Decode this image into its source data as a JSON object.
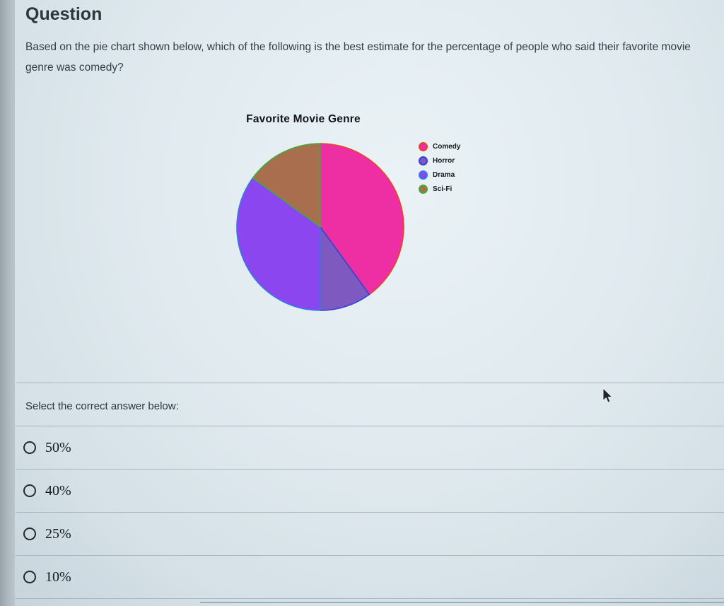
{
  "page": {
    "title": "Question",
    "question": "Based on the pie chart shown below, which of the following is the best estimate for the percentage of people who said their favorite movie genre was comedy?",
    "select_prompt": "Select the correct answer below:"
  },
  "chart_data": {
    "type": "pie",
    "title": "Favorite Movie Genre",
    "legend_position": "right",
    "start_angle": "top",
    "direction": "clockwise",
    "categories": [
      "Comedy",
      "Horror",
      "Drama",
      "Sci-Fi"
    ],
    "values": [
      40,
      10,
      35,
      15
    ],
    "unit": "percent",
    "segments": [
      {
        "label": "Comedy",
        "value": 40,
        "fill": "#ee2fa4",
        "stroke": "#dd4a1e"
      },
      {
        "label": "Horror",
        "value": 10,
        "fill": "#7d59c0",
        "stroke": "#3340d6"
      },
      {
        "label": "Drama",
        "value": 35,
        "fill": "#8b46f0",
        "stroke": "#2f7de8"
      },
      {
        "label": "Sci-Fi",
        "value": 15,
        "fill": "#a86e4e",
        "stroke": "#3fae30"
      }
    ]
  },
  "answers": {
    "options": [
      {
        "label": "50%"
      },
      {
        "label": "40%"
      },
      {
        "label": "25%"
      },
      {
        "label": "10%"
      }
    ]
  }
}
